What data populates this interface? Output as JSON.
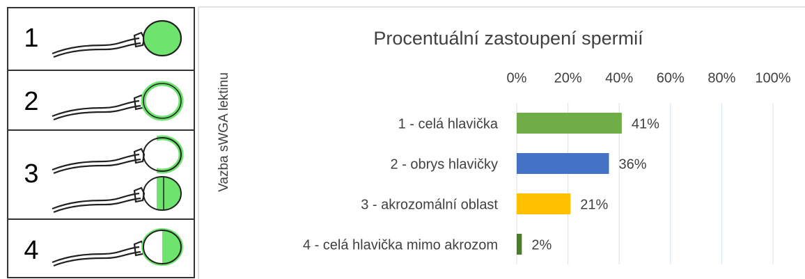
{
  "panel": {
    "labels": [
      "1",
      "2",
      "3",
      "4"
    ]
  },
  "chart_data": {
    "type": "bar",
    "orientation": "horizontal",
    "title": "Procentuální zastoupení spermií",
    "y_axis_label": "Vazba sWGA lektinu",
    "categories": [
      "1 - celá hlavička",
      "2 - obrys hlavičky",
      "3 - akrozomální oblast",
      "4 - celá hlavička mimo akrozom"
    ],
    "values": [
      41,
      36,
      21,
      2
    ],
    "value_labels": [
      "41%",
      "36%",
      "21%",
      "2%"
    ],
    "colors": [
      "#70ad47",
      "#4472c4",
      "#ffc000",
      "#4e7a2f"
    ],
    "xlim": [
      0,
      100
    ],
    "xticks": [
      {
        "value": 0,
        "label": "0%"
      },
      {
        "value": 20,
        "label": "20%"
      },
      {
        "value": 40,
        "label": "40%"
      },
      {
        "value": 60,
        "label": "60%"
      },
      {
        "value": 80,
        "label": "80%"
      },
      {
        "value": 100,
        "label": "100%"
      }
    ],
    "grid": true
  }
}
